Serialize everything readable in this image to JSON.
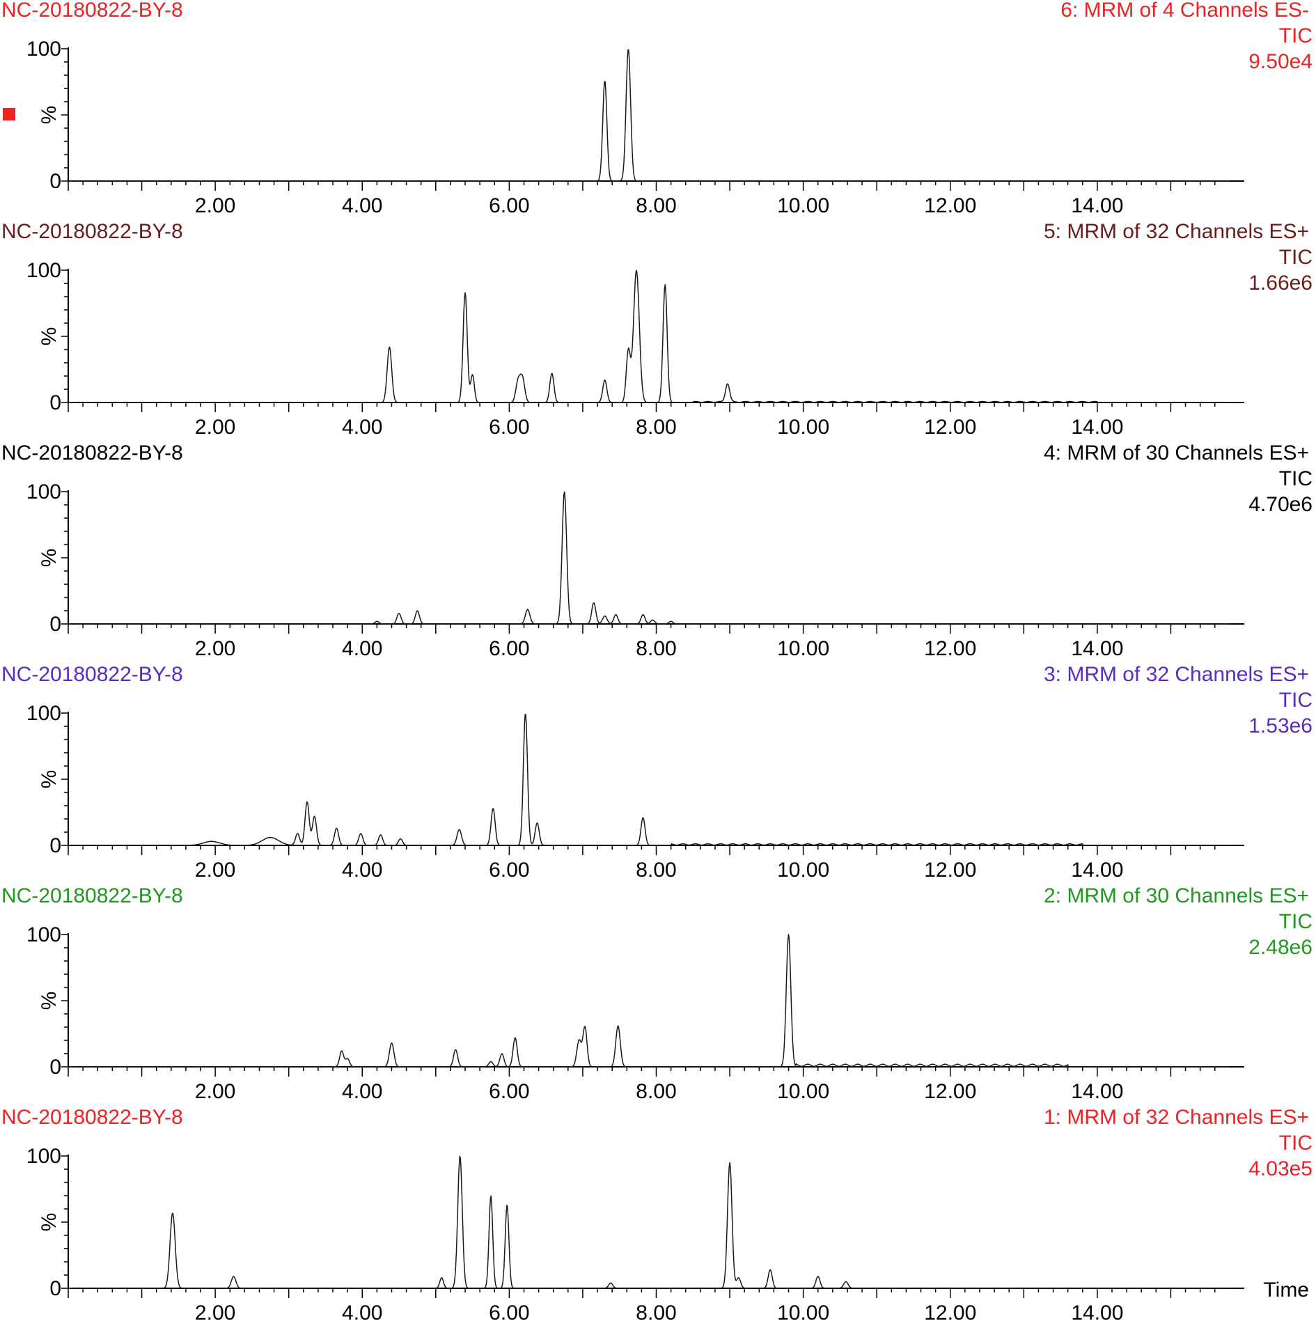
{
  "chart_data": [
    {
      "type": "line",
      "sample": "NC-20180822-BY-8",
      "channel": "6: MRM of 4 Channels ES-",
      "trace": "TIC",
      "intensity": "9.50e4",
      "color": "#ee2222",
      "marker": true,
      "xlim": [
        0,
        15.8
      ],
      "ylim": [
        0,
        100
      ],
      "peaks": [
        {
          "rt": 7.3,
          "h": 76,
          "w": 0.02
        },
        {
          "rt": 7.62,
          "h": 100,
          "w": 0.022
        }
      ],
      "baseline": []
    },
    {
      "type": "line",
      "sample": "NC-20180822-BY-8",
      "channel": "5: MRM of 32 Channels ES+",
      "trace": "TIC",
      "intensity": "1.66e6",
      "color": "#6b1c1c",
      "xlim": [
        0,
        15.8
      ],
      "ylim": [
        0,
        100
      ],
      "peaks": [
        {
          "rt": 4.37,
          "h": 42,
          "w": 0.022
        },
        {
          "rt": 5.4,
          "h": 83,
          "w": 0.02
        },
        {
          "rt": 5.5,
          "h": 21,
          "w": 0.018
        },
        {
          "rt": 6.12,
          "h": 16,
          "w": 0.022
        },
        {
          "rt": 6.18,
          "h": 18,
          "w": 0.022
        },
        {
          "rt": 6.58,
          "h": 22,
          "w": 0.02
        },
        {
          "rt": 7.3,
          "h": 17,
          "w": 0.02
        },
        {
          "rt": 7.62,
          "h": 39,
          "w": 0.02
        },
        {
          "rt": 7.73,
          "h": 100,
          "w": 0.028
        },
        {
          "rt": 8.12,
          "h": 89,
          "w": 0.02
        },
        {
          "rt": 8.97,
          "h": 14,
          "w": 0.02
        }
      ],
      "baseline": [
        [
          8.5,
          14.0,
          0.8
        ]
      ]
    },
    {
      "type": "line",
      "sample": "NC-20180822-BY-8",
      "channel": "4: MRM of 30 Channels ES+",
      "trace": "TIC",
      "intensity": "4.70e6",
      "color": "#000000",
      "xlim": [
        0,
        15.8
      ],
      "ylim": [
        0,
        100
      ],
      "peaks": [
        {
          "rt": 4.2,
          "h": 2,
          "w": 0.02
        },
        {
          "rt": 4.5,
          "h": 8,
          "w": 0.02
        },
        {
          "rt": 4.75,
          "h": 10,
          "w": 0.02
        },
        {
          "rt": 6.25,
          "h": 11,
          "w": 0.022
        },
        {
          "rt": 6.75,
          "h": 100,
          "w": 0.022
        },
        {
          "rt": 7.15,
          "h": 16,
          "w": 0.02
        },
        {
          "rt": 7.3,
          "h": 6,
          "w": 0.022
        },
        {
          "rt": 7.45,
          "h": 7,
          "w": 0.02
        },
        {
          "rt": 7.82,
          "h": 7,
          "w": 0.02
        },
        {
          "rt": 7.95,
          "h": 3,
          "w": 0.02
        },
        {
          "rt": 8.2,
          "h": 2,
          "w": 0.02
        }
      ],
      "baseline": []
    },
    {
      "type": "line",
      "sample": "NC-20180822-BY-8",
      "channel": "3: MRM of 32 Channels ES+",
      "trace": "TIC",
      "intensity": "1.53e6",
      "color": "#5b2bc4",
      "xlim": [
        0,
        15.8
      ],
      "ylim": [
        0,
        100
      ],
      "peaks": [
        {
          "rt": 1.95,
          "h": 3,
          "w": 0.08
        },
        {
          "rt": 2.75,
          "h": 6,
          "w": 0.08
        },
        {
          "rt": 3.12,
          "h": 9,
          "w": 0.02
        },
        {
          "rt": 3.25,
          "h": 33,
          "w": 0.02
        },
        {
          "rt": 3.35,
          "h": 22,
          "w": 0.02
        },
        {
          "rt": 3.65,
          "h": 13,
          "w": 0.02
        },
        {
          "rt": 3.98,
          "h": 9,
          "w": 0.02
        },
        {
          "rt": 4.25,
          "h": 8,
          "w": 0.02
        },
        {
          "rt": 4.52,
          "h": 5,
          "w": 0.02
        },
        {
          "rt": 5.32,
          "h": 12,
          "w": 0.022
        },
        {
          "rt": 5.78,
          "h": 28,
          "w": 0.02
        },
        {
          "rt": 6.22,
          "h": 100,
          "w": 0.02
        },
        {
          "rt": 6.38,
          "h": 17,
          "w": 0.02
        },
        {
          "rt": 7.82,
          "h": 21,
          "w": 0.02
        }
      ],
      "baseline": [
        [
          8.2,
          13.8,
          1.2
        ]
      ]
    },
    {
      "type": "line",
      "sample": "NC-20180822-BY-8",
      "channel": "2: MRM of 30 Channels ES+",
      "trace": "TIC",
      "intensity": "2.48e6",
      "color": "#1f9a1f",
      "xlim": [
        0,
        15.8
      ],
      "ylim": [
        0,
        100
      ],
      "peaks": [
        {
          "rt": 3.72,
          "h": 12,
          "w": 0.02
        },
        {
          "rt": 3.8,
          "h": 6,
          "w": 0.02
        },
        {
          "rt": 4.4,
          "h": 18,
          "w": 0.022
        },
        {
          "rt": 5.27,
          "h": 13,
          "w": 0.02
        },
        {
          "rt": 5.75,
          "h": 4,
          "w": 0.02
        },
        {
          "rt": 5.9,
          "h": 10,
          "w": 0.02
        },
        {
          "rt": 6.08,
          "h": 22,
          "w": 0.02
        },
        {
          "rt": 6.95,
          "h": 20,
          "w": 0.022
        },
        {
          "rt": 7.03,
          "h": 30,
          "w": 0.02
        },
        {
          "rt": 7.48,
          "h": 31,
          "w": 0.022
        },
        {
          "rt": 9.8,
          "h": 100,
          "w": 0.022
        }
      ],
      "baseline": [
        [
          9.9,
          13.6,
          2.0
        ]
      ]
    },
    {
      "type": "line",
      "sample": "NC-20180822-BY-8",
      "channel": "1: MRM of 32 Channels ES+",
      "trace": "TIC",
      "intensity": "4.03e5",
      "color": "#ee2222",
      "xlabel": "Time",
      "xlim": [
        0,
        15.8
      ],
      "ylim": [
        0,
        100
      ],
      "peaks": [
        {
          "rt": 1.42,
          "h": 57,
          "w": 0.025
        },
        {
          "rt": 2.25,
          "h": 9,
          "w": 0.022
        },
        {
          "rt": 5.08,
          "h": 8,
          "w": 0.018
        },
        {
          "rt": 5.33,
          "h": 100,
          "w": 0.022
        },
        {
          "rt": 5.75,
          "h": 70,
          "w": 0.018
        },
        {
          "rt": 5.97,
          "h": 63,
          "w": 0.018
        },
        {
          "rt": 7.38,
          "h": 4,
          "w": 0.02
        },
        {
          "rt": 9.0,
          "h": 95,
          "w": 0.022
        },
        {
          "rt": 9.12,
          "h": 8,
          "w": 0.02
        },
        {
          "rt": 9.55,
          "h": 14,
          "w": 0.02
        },
        {
          "rt": 10.2,
          "h": 9,
          "w": 0.02
        },
        {
          "rt": 10.58,
          "h": 5,
          "w": 0.022
        }
      ],
      "baseline": []
    }
  ],
  "axes": {
    "y_ticks": [
      "100",
      "%",
      "0"
    ],
    "x_ticks": [
      {
        "value": 2,
        "label": "2.00"
      },
      {
        "value": 4,
        "label": "4.00"
      },
      {
        "value": 6,
        "label": "6.00"
      },
      {
        "value": 8,
        "label": "8.00"
      },
      {
        "value": 10,
        "label": "10.00"
      },
      {
        "value": 12,
        "label": "12.00"
      },
      {
        "value": 14,
        "label": "14.00"
      }
    ]
  }
}
